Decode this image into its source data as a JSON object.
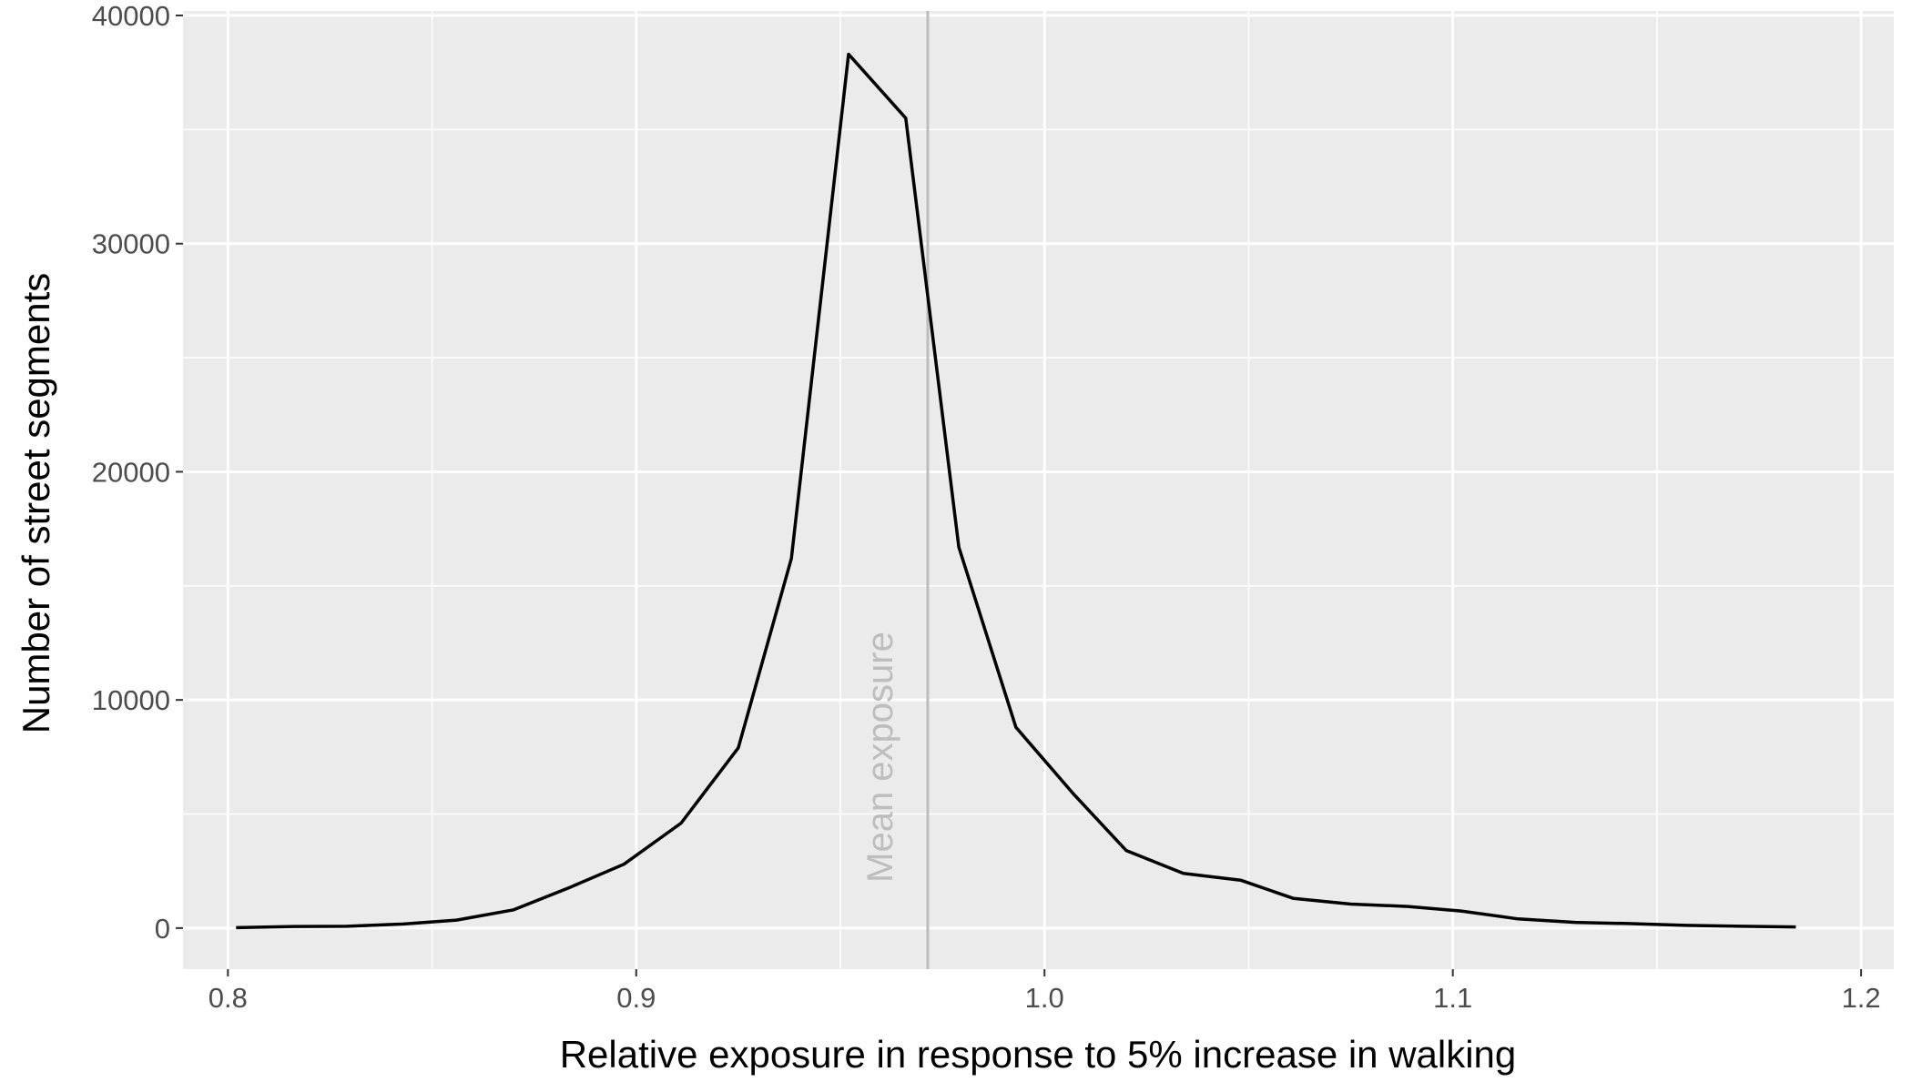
{
  "chart_data": {
    "type": "line",
    "title": "",
    "xlabel": "Relative exposure in response to 5% increase in walking",
    "ylabel": "Number of street segments",
    "xlim": [
      0.789,
      1.208
    ],
    "ylim": [
      -1800,
      40200
    ],
    "x_ticks": [
      {
        "value": 0.8,
        "label": "0.8"
      },
      {
        "value": 0.9,
        "label": "0.9"
      },
      {
        "value": 1.0,
        "label": "1.0"
      },
      {
        "value": 1.1,
        "label": "1.1"
      },
      {
        "value": 1.2,
        "label": "1.2"
      }
    ],
    "y_ticks": [
      {
        "value": 0,
        "label": "0"
      },
      {
        "value": 10000,
        "label": "10000"
      },
      {
        "value": 20000,
        "label": "20000"
      },
      {
        "value": 30000,
        "label": "30000"
      },
      {
        "value": 40000,
        "label": "40000"
      }
    ],
    "x_minor_ticks": [
      0.85,
      0.95,
      1.05,
      1.15
    ],
    "y_minor_ticks": [
      5000,
      15000,
      25000,
      35000
    ],
    "grid": true,
    "series": [
      {
        "color": "#000000",
        "x": [
          0.802,
          0.816,
          0.829,
          0.843,
          0.856,
          0.87,
          0.884,
          0.897,
          0.911,
          0.925,
          0.938,
          0.952,
          0.966,
          0.979,
          0.993,
          1.007,
          1.02,
          1.034,
          1.048,
          1.061,
          1.075,
          1.089,
          1.102,
          1.116,
          1.13,
          1.143,
          1.157,
          1.171,
          1.184
        ],
        "y": [
          20,
          70,
          80,
          180,
          350,
          800,
          1800,
          2800,
          4600,
          7900,
          16200,
          38300,
          35500,
          16700,
          8800,
          5900,
          3400,
          2400,
          2100,
          1300,
          1050,
          950,
          750,
          400,
          250,
          200,
          120,
          80,
          50
        ]
      }
    ],
    "reference_line": {
      "x": 0.9714,
      "label": "Mean exposure",
      "color": "#bdbdbd"
    }
  }
}
